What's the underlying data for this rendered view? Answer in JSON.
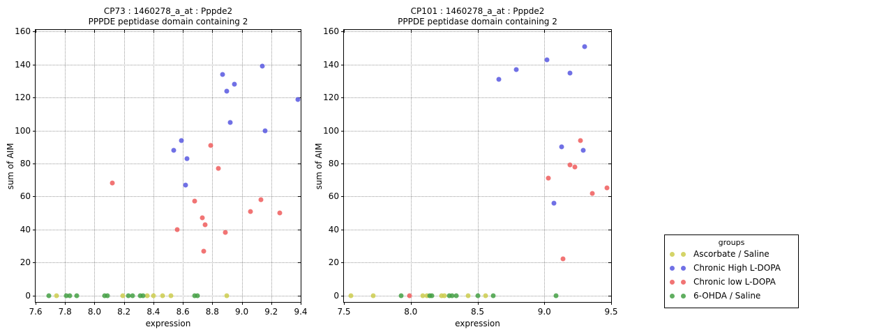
{
  "colors": {
    "blue": "#5757e0",
    "red": "#ee5c5c",
    "green": "#44a044",
    "yellow": "#cccc4e",
    "grid": "#9b9b9b",
    "axis": "#000000"
  },
  "legend": {
    "title": "groups",
    "entries": [
      {
        "label": "Ascorbate / Saline",
        "color": "yellow"
      },
      {
        "label": "Chronic High L-DOPA",
        "color": "blue"
      },
      {
        "label": "Chronic low L-DOPA",
        "color": "red"
      },
      {
        "label": "6-OHDA / Saline",
        "color": "green"
      }
    ]
  },
  "chart_data": [
    {
      "type": "scatter",
      "title_line1": "CP73 : 1460278_a_at : Pppde2",
      "title_line2": "PPPDE peptidase domain containing 2",
      "xlabel": "expression",
      "ylabel": "sum of AIM",
      "xlim": [
        7.6,
        9.4
      ],
      "ylim": [
        -4,
        161
      ],
      "xticks": [
        7.6,
        7.8,
        8.0,
        8.2,
        8.4,
        8.6,
        8.8,
        9.0,
        9.2,
        9.4
      ],
      "xgrid": [
        7.8,
        8.0,
        8.2,
        8.4,
        8.6,
        8.8,
        9.0,
        9.2
      ],
      "yticks": [
        0,
        20,
        40,
        60,
        80,
        100,
        120,
        140,
        160
      ],
      "grid": true,
      "legend_position": "outside-right",
      "series": [
        {
          "name": "Ascorbate / Saline",
          "color": "yellow",
          "points": [
            [
              7.74,
              0
            ],
            [
              8.19,
              0
            ],
            [
              8.36,
              0
            ],
            [
              8.4,
              0
            ],
            [
              8.46,
              0
            ],
            [
              8.52,
              0
            ],
            [
              8.9,
              0
            ]
          ]
        },
        {
          "name": "6-OHDA / Saline",
          "color": "green",
          "points": [
            [
              7.69,
              0
            ],
            [
              7.81,
              0
            ],
            [
              7.83,
              0
            ],
            [
              7.88,
              0
            ],
            [
              8.07,
              0
            ],
            [
              8.09,
              0
            ],
            [
              8.23,
              0
            ],
            [
              8.26,
              0
            ],
            [
              8.31,
              0
            ],
            [
              8.33,
              0
            ],
            [
              8.68,
              0
            ],
            [
              8.7,
              0
            ]
          ]
        },
        {
          "name": "Chronic High L-DOPA",
          "color": "blue",
          "points": [
            [
              8.54,
              88
            ],
            [
              8.59,
              94
            ],
            [
              8.62,
              67
            ],
            [
              8.63,
              83
            ],
            [
              8.87,
              134
            ],
            [
              8.9,
              124
            ],
            [
              8.92,
              105
            ],
            [
              8.95,
              128
            ],
            [
              9.14,
              139
            ],
            [
              9.16,
              100
            ],
            [
              9.38,
              119
            ]
          ]
        },
        {
          "name": "Chronic low L-DOPA",
          "color": "red",
          "points": [
            [
              8.12,
              68
            ],
            [
              8.56,
              40
            ],
            [
              8.68,
              57
            ],
            [
              8.73,
              47
            ],
            [
              8.74,
              27
            ],
            [
              8.75,
              43
            ],
            [
              8.79,
              91
            ],
            [
              8.84,
              77
            ],
            [
              8.89,
              38
            ],
            [
              9.06,
              51
            ],
            [
              9.13,
              58
            ],
            [
              9.26,
              50
            ]
          ]
        }
      ]
    },
    {
      "type": "scatter",
      "title_line1": "CP101 : 1460278_a_at : Pppde2",
      "title_line2": "PPPDE peptidase domain containing 2",
      "xlabel": "expression",
      "ylabel": "sum of AIM",
      "xlim": [
        7.5,
        9.5
      ],
      "ylim": [
        -4,
        161
      ],
      "xticks": [
        7.5,
        8.0,
        8.5,
        9.0,
        9.5
      ],
      "xgrid": [
        8.0,
        8.5,
        9.0
      ],
      "yticks": [
        0,
        20,
        40,
        60,
        80,
        100,
        120,
        140,
        160
      ],
      "grid": true,
      "legend_position": "outside-right",
      "series": [
        {
          "name": "Ascorbate / Saline",
          "color": "yellow",
          "points": [
            [
              7.55,
              0
            ],
            [
              7.72,
              0
            ],
            [
              8.09,
              0
            ],
            [
              8.12,
              0
            ],
            [
              8.23,
              0
            ],
            [
              8.25,
              0
            ],
            [
              8.43,
              0
            ],
            [
              8.56,
              0
            ]
          ]
        },
        {
          "name": "6-OHDA / Saline",
          "color": "green",
          "points": [
            [
              7.93,
              0
            ],
            [
              8.14,
              0
            ],
            [
              8.16,
              0
            ],
            [
              8.29,
              0
            ],
            [
              8.31,
              0
            ],
            [
              8.34,
              0
            ],
            [
              8.5,
              0
            ],
            [
              8.62,
              0
            ],
            [
              9.09,
              0
            ]
          ]
        },
        {
          "name": "Chronic High L-DOPA",
          "color": "blue",
          "points": [
            [
              8.66,
              131
            ],
            [
              8.79,
              137
            ],
            [
              9.02,
              143
            ],
            [
              9.07,
              56
            ],
            [
              9.13,
              90
            ],
            [
              9.19,
              135
            ],
            [
              9.29,
              88
            ],
            [
              9.3,
              151
            ]
          ]
        },
        {
          "name": "Chronic low L-DOPA",
          "color": "red",
          "points": [
            [
              7.99,
              0
            ],
            [
              9.03,
              71
            ],
            [
              9.14,
              22
            ],
            [
              9.19,
              79
            ],
            [
              9.23,
              78
            ],
            [
              9.27,
              94
            ],
            [
              9.36,
              62
            ],
            [
              9.47,
              65
            ]
          ]
        }
      ]
    }
  ]
}
